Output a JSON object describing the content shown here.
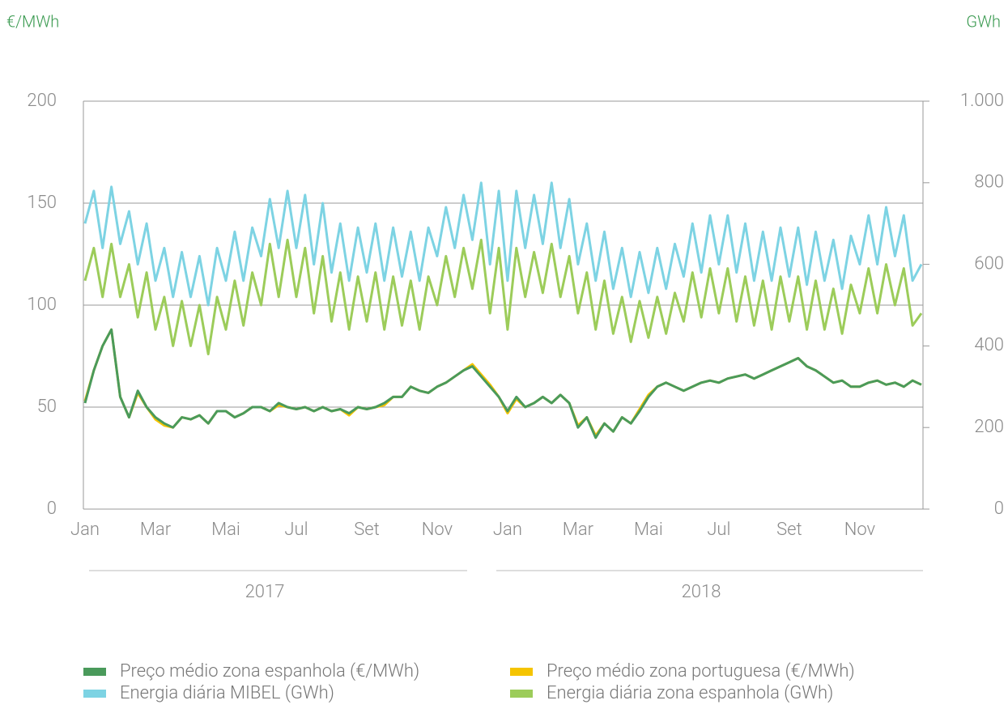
{
  "chart_data": {
    "type": "line",
    "y_axis_label": "€/MWh",
    "y2_axis_label": "GWh",
    "categories": [
      "Jan",
      null,
      null,
      null,
      null,
      null,
      null,
      null,
      "Mar",
      null,
      null,
      null,
      null,
      null,
      null,
      null,
      "Mai",
      null,
      null,
      null,
      null,
      null,
      null,
      null,
      "Jul",
      null,
      null,
      null,
      null,
      null,
      null,
      null,
      "Set",
      null,
      null,
      null,
      null,
      null,
      null,
      null,
      "Nov",
      null,
      null,
      null,
      null,
      null,
      null,
      null,
      "Jan",
      null,
      null,
      null,
      null,
      null,
      null,
      null,
      "Mar",
      null,
      null,
      null,
      null,
      null,
      null,
      null,
      "Mai",
      null,
      null,
      null,
      null,
      null,
      null,
      null,
      "Jul",
      null,
      null,
      null,
      null,
      null,
      null,
      null,
      "Set",
      null,
      null,
      null,
      null,
      null,
      null,
      null,
      "Nov",
      null,
      null,
      null,
      null,
      null,
      null,
      null
    ],
    "period_labels": [
      "2017",
      "2018"
    ],
    "ylim": [
      0,
      200
    ],
    "yticks": [
      0,
      50,
      100,
      150,
      200
    ],
    "y2lim": [
      0,
      1000
    ],
    "y2ticks": [
      0,
      200,
      400,
      600,
      800,
      {
        "value": 1000,
        "label": "1.000"
      }
    ],
    "grid": true,
    "series": [
      {
        "name": "Energia diária MIBEL (GWh)",
        "color": "#7dd3e3",
        "axis": "y2",
        "values": [
          700,
          780,
          640,
          790,
          650,
          730,
          600,
          700,
          560,
          640,
          520,
          630,
          520,
          620,
          500,
          640,
          560,
          680,
          560,
          690,
          620,
          760,
          640,
          780,
          640,
          770,
          600,
          750,
          580,
          700,
          560,
          690,
          580,
          700,
          560,
          690,
          570,
          680,
          560,
          690,
          620,
          740,
          640,
          770,
          660,
          800,
          600,
          780,
          560,
          780,
          640,
          770,
          650,
          800,
          640,
          760,
          600,
          700,
          560,
          680,
          540,
          640,
          520,
          630,
          530,
          640,
          540,
          650,
          570,
          700,
          580,
          720,
          600,
          720,
          580,
          700,
          560,
          680,
          560,
          690,
          570,
          690,
          550,
          680,
          560,
          660,
          540,
          670,
          600,
          720,
          600,
          740,
          620,
          720,
          560,
          600
        ]
      },
      {
        "name": "Energia diária zona espanhola (GWh)",
        "color": "#9ccc5a",
        "axis": "y2",
        "values": [
          560,
          640,
          520,
          650,
          520,
          600,
          470,
          580,
          440,
          520,
          400,
          510,
          400,
          500,
          380,
          520,
          440,
          560,
          450,
          580,
          500,
          650,
          520,
          660,
          520,
          640,
          480,
          620,
          460,
          580,
          440,
          570,
          460,
          580,
          440,
          570,
          450,
          560,
          440,
          570,
          500,
          620,
          520,
          640,
          540,
          660,
          480,
          640,
          440,
          640,
          520,
          630,
          530,
          650,
          520,
          620,
          480,
          580,
          440,
          560,
          430,
          520,
          410,
          510,
          420,
          520,
          430,
          530,
          460,
          580,
          470,
          590,
          480,
          590,
          460,
          570,
          450,
          560,
          440,
          570,
          460,
          570,
          440,
          560,
          440,
          540,
          430,
          550,
          480,
          590,
          480,
          600,
          500,
          590,
          450,
          480
        ]
      },
      {
        "name": "Preço médio zona portuguesa (€/MWh)",
        "color": "#f5c400",
        "values": [
          53,
          68,
          80,
          88,
          55,
          45,
          57,
          50,
          44,
          41,
          40,
          45,
          44,
          46,
          42,
          48,
          48,
          45,
          47,
          50,
          50,
          48,
          51,
          50,
          49,
          50,
          48,
          50,
          48,
          49,
          46,
          50,
          49,
          50,
          51,
          55,
          55,
          60,
          58,
          57,
          60,
          62,
          65,
          68,
          71,
          66,
          61,
          55,
          47,
          54,
          50,
          52,
          55,
          52,
          56,
          52,
          41,
          45,
          36,
          42,
          38,
          45,
          42,
          49,
          56,
          60,
          62,
          60,
          58,
          60,
          62,
          63,
          62,
          64,
          65,
          66,
          64,
          66,
          68,
          70,
          72,
          74,
          70,
          68,
          65,
          62,
          63,
          60,
          60,
          62,
          63,
          61,
          62,
          60,
          63,
          61
        ]
      },
      {
        "name": "Preço médio zona espanhola (€/MWh)",
        "color": "#4a9a5b",
        "values": [
          52,
          68,
          80,
          88,
          55,
          45,
          58,
          50,
          45,
          42,
          40,
          45,
          44,
          46,
          42,
          48,
          48,
          45,
          47,
          50,
          50,
          48,
          52,
          50,
          49,
          50,
          48,
          50,
          48,
          49,
          47,
          50,
          49,
          50,
          52,
          55,
          55,
          60,
          58,
          57,
          60,
          62,
          65,
          68,
          70,
          65,
          60,
          55,
          48,
          55,
          50,
          52,
          55,
          52,
          56,
          52,
          40,
          45,
          35,
          42,
          38,
          45,
          42,
          48,
          55,
          60,
          62,
          60,
          58,
          60,
          62,
          63,
          62,
          64,
          65,
          66,
          64,
          66,
          68,
          70,
          72,
          74,
          70,
          68,
          65,
          62,
          63,
          60,
          60,
          62,
          63,
          61,
          62,
          60,
          63,
          61
        ]
      }
    ]
  }
}
